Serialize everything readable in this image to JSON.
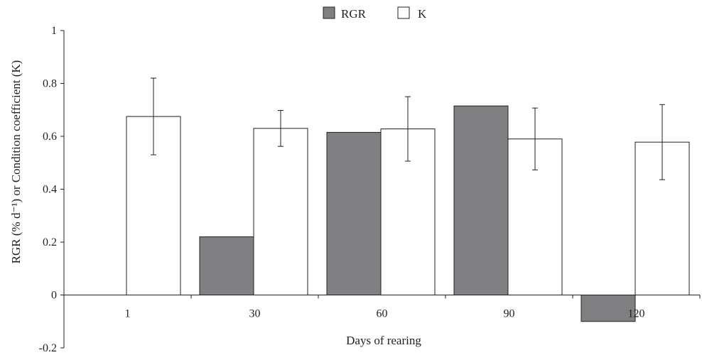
{
  "chart_data": {
    "type": "bar",
    "xlabel": "Days of rearing",
    "ylabel": "RGR (% d⁻¹) or Condition coefficient (K)",
    "ylim": [
      -0.2,
      1
    ],
    "yticks": [
      "1",
      "0.8",
      "0.6",
      "0.4",
      "0.2",
      "0",
      "-0.2"
    ],
    "ytick_values": [
      1,
      0.8,
      0.6,
      0.4,
      0.2,
      0,
      -0.2
    ],
    "categories": [
      "1",
      "30",
      "60",
      "90",
      "120"
    ],
    "legend_position": "top",
    "series": [
      {
        "name": "RGR",
        "color": "#808083",
        "values": [
          null,
          0.22,
          0.615,
          0.715,
          -0.1
        ],
        "errors": [
          null,
          null,
          null,
          null,
          null
        ]
      },
      {
        "name": "K",
        "color": "#ffffff",
        "values": [
          0.675,
          0.63,
          0.628,
          0.59,
          0.578
        ],
        "errors": [
          0.145,
          0.068,
          0.122,
          0.117,
          0.142
        ]
      }
    ]
  }
}
